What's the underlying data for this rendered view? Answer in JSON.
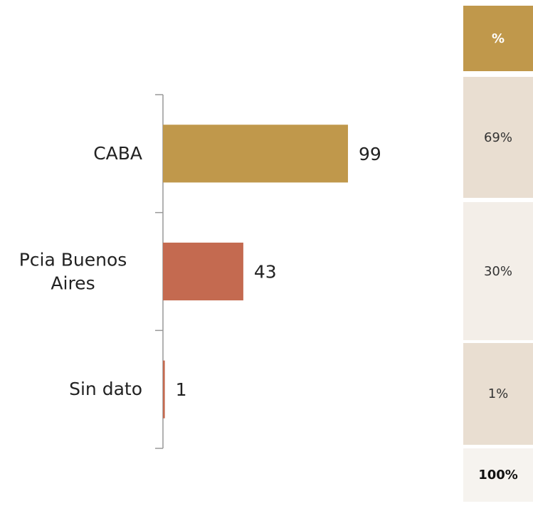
{
  "chart_data": {
    "type": "bar",
    "orientation": "horizontal",
    "categories": [
      "CABA",
      "Pcia Buenos Aires",
      "Sin dato"
    ],
    "values": [
      99,
      43,
      1
    ],
    "colors": [
      "#c0984b",
      "#c46a50",
      "#c46a50"
    ]
  },
  "table": {
    "header": "%",
    "rows": [
      "69%",
      "30%",
      "1%"
    ],
    "total": "100%"
  }
}
